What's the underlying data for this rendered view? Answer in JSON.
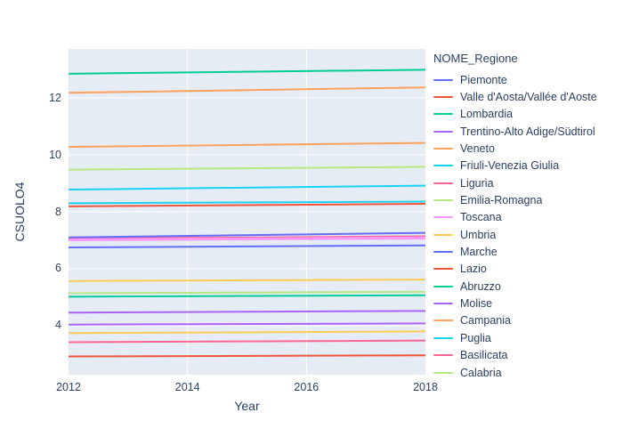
{
  "chart_data": {
    "type": "line",
    "title": "",
    "xlabel": "Year",
    "ylabel": "CSUOLO4",
    "legend_title": "NOME_Regione",
    "legend_position": "right",
    "grid": true,
    "x_ticks": [
      2012,
      2014,
      2016,
      2018
    ],
    "y_ticks": [
      4,
      6,
      8,
      10,
      12
    ],
    "x_range": [
      2012,
      2018
    ],
    "y_range": [
      2.28,
      13.72
    ],
    "x": [
      2012,
      2018
    ],
    "series": [
      {
        "name": "Piemonte",
        "color": "#636EFA",
        "values": [
          6.75,
          6.82
        ],
        "in_legend": true
      },
      {
        "name": "Valle d'Aosta/Vallée d'Aoste",
        "color": "#EF553B",
        "values": [
          2.92,
          2.96
        ],
        "in_legend": true
      },
      {
        "name": "Lombardia",
        "color": "#00CC96",
        "values": [
          12.85,
          12.99
        ],
        "in_legend": true
      },
      {
        "name": "Trentino-Alto Adige/Südtirol",
        "color": "#AB63FA",
        "values": [
          4.46,
          4.52
        ],
        "in_legend": true
      },
      {
        "name": "Veneto",
        "color": "#FFA15A",
        "values": [
          12.18,
          12.37
        ],
        "in_legend": true
      },
      {
        "name": "Friuli-Venezia Giulia",
        "color": "#19D3F3",
        "values": [
          8.78,
          8.92
        ],
        "in_legend": true
      },
      {
        "name": "Liguria",
        "color": "#FF6692",
        "values": [
          7.06,
          7.14
        ],
        "in_legend": true
      },
      {
        "name": "Emilia-Romagna",
        "color": "#B6E880",
        "values": [
          9.48,
          9.58
        ],
        "in_legend": true
      },
      {
        "name": "Toscana",
        "color": "#FF97FF",
        "values": [
          7.03,
          7.1
        ],
        "in_legend": true
      },
      {
        "name": "Umbria",
        "color": "#FECB52",
        "values": [
          5.57,
          5.62
        ],
        "in_legend": true
      },
      {
        "name": "Marche",
        "color": "#636EFA",
        "values": [
          7.1,
          7.26
        ],
        "in_legend": true
      },
      {
        "name": "Lazio",
        "color": "#EF553B",
        "values": [
          8.19,
          8.28
        ],
        "in_legend": true
      },
      {
        "name": "Abruzzo",
        "color": "#00CC96",
        "values": [
          5.02,
          5.07
        ],
        "in_legend": true
      },
      {
        "name": "Molise",
        "color": "#AB63FA",
        "values": [
          4.04,
          4.08
        ],
        "in_legend": true
      },
      {
        "name": "Campania",
        "color": "#FFA15A",
        "values": [
          10.28,
          10.42
        ],
        "in_legend": true
      },
      {
        "name": "Puglia",
        "color": "#19D3F3",
        "values": [
          8.3,
          8.36
        ],
        "in_legend": true
      },
      {
        "name": "Basilicata",
        "color": "#FF6692",
        "values": [
          3.42,
          3.48
        ],
        "in_legend": true
      },
      {
        "name": "Calabria",
        "color": "#B6E880",
        "values": [
          5.14,
          5.19
        ],
        "in_legend": true
      },
      {
        "name": "",
        "color": "#FF97FF",
        "values": [
          7.0,
          7.06
        ],
        "in_legend": false
      },
      {
        "name": "",
        "color": "#FECB52",
        "values": [
          3.74,
          3.8
        ],
        "in_legend": false
      }
    ],
    "colors": {
      "plot_background": "#e5ecf6",
      "paper_background": "#ffffff",
      "gridline": "#ffffff",
      "text": "#2a3f5f"
    }
  }
}
